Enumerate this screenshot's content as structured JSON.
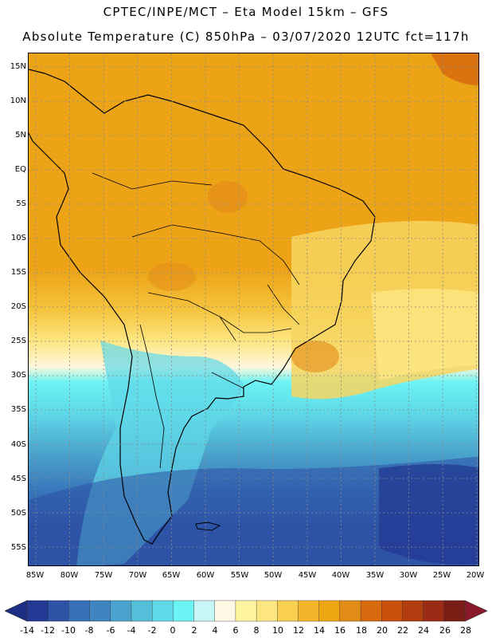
{
  "header": {
    "line1": "CPTEC/INPE/MCT –  Eta Model 15km – GFS",
    "line2": "Absolute Temperature (C) 850hPa – 03/07/2020 12UTC fct=117h"
  },
  "map": {
    "latitude_labels": [
      "15N",
      "10N",
      "5N",
      "EQ",
      "5S",
      "10S",
      "15S",
      "20S",
      "25S",
      "30S",
      "35S",
      "40S",
      "45S",
      "50S",
      "55S"
    ],
    "longitude_labels": [
      "85W",
      "80W",
      "75W",
      "70W",
      "65W",
      "60W",
      "55W",
      "50W",
      "45W",
      "40W",
      "35W",
      "30W",
      "25W",
      "20W"
    ]
  },
  "colorbar": {
    "labels": [
      "-14",
      "-12",
      "-10",
      "-8",
      "-6",
      "-4",
      "-2",
      "0",
      "2",
      "4",
      "6",
      "8",
      "10",
      "12",
      "14",
      "16",
      "18",
      "20",
      "22",
      "24",
      "26",
      "28"
    ],
    "under_color": "#1d2f84",
    "over_color": "#8a1a2a",
    "colors": [
      "#233993",
      "#2d52a6",
      "#3771b8",
      "#3f86c0",
      "#4aa3cc",
      "#53bfd9",
      "#5fd9e8",
      "#6cf3f4",
      "#c8f5f8",
      "#fff9e6",
      "#fff5a0",
      "#fde682",
      "#f9cf52",
      "#f3b52c",
      "#eea512",
      "#e38c18",
      "#d76a0f",
      "#c9500c",
      "#b13d10",
      "#9a2b14",
      "#7a1d14"
    ]
  }
}
